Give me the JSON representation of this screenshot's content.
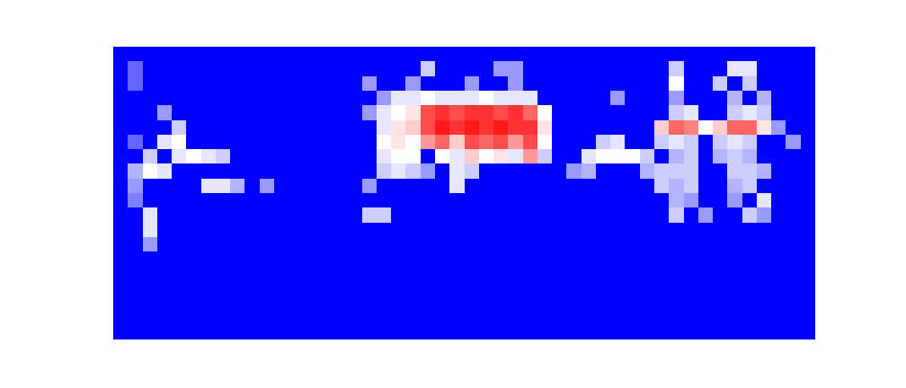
{
  "chart_data": {
    "type": "heatmap",
    "tick_labels": false,
    "grid": false,
    "colors": [
      "#0000ff",
      "#ffffff",
      "#ff0000"
    ],
    "xlim": [
      -0.5,
      47.5
    ],
    "ylim": [
      19.5,
      -0.5
    ],
    "zlim": [
      0,
      1
    ],
    "z": [
      [
        0,
        0,
        0,
        0,
        0,
        0,
        0,
        0,
        0,
        0,
        0,
        0,
        0,
        0,
        0,
        0,
        0,
        0,
        0,
        0,
        0,
        0,
        0,
        0,
        0,
        0,
        0,
        0,
        0,
        0,
        0,
        0,
        0,
        0,
        0,
        0,
        0,
        0,
        0,
        0,
        0,
        0,
        0,
        0,
        0,
        0,
        0,
        0
      ],
      [
        0,
        0.2,
        0,
        0,
        0,
        0,
        0,
        0,
        0,
        0,
        0,
        0,
        0,
        0,
        0,
        0,
        0,
        0,
        0,
        0,
        0,
        0.4,
        0,
        0,
        0,
        0,
        0.3,
        0.3,
        0,
        0,
        0,
        0,
        0,
        0,
        0,
        0,
        0,
        0,
        0.4,
        0,
        0,
        0,
        0.45,
        0.45,
        0,
        0,
        0,
        0
      ],
      [
        0,
        0.2,
        0,
        0,
        0,
        0,
        0,
        0,
        0,
        0,
        0,
        0,
        0,
        0,
        0,
        0,
        0,
        0.3,
        0,
        0,
        0.3,
        0,
        0,
        0,
        0.3,
        0,
        0,
        0.3,
        0,
        0,
        0,
        0,
        0,
        0,
        0,
        0,
        0,
        0,
        0.5,
        0,
        0,
        0.4,
        0,
        0.4,
        0,
        0,
        0,
        0
      ],
      [
        0,
        0,
        0,
        0,
        0,
        0,
        0,
        0,
        0,
        0,
        0,
        0,
        0,
        0,
        0,
        0,
        0,
        0,
        0.3,
        0.45,
        0.45,
        0.5,
        0.45,
        0.45,
        0.45,
        0.5,
        0.45,
        0.45,
        0.45,
        0,
        0,
        0,
        0,
        0,
        0.3,
        0,
        0,
        0,
        0.3,
        0,
        0,
        0,
        0.35,
        0,
        0.35,
        0,
        0,
        0
      ],
      [
        0,
        0,
        0,
        0.3,
        0,
        0,
        0,
        0,
        0,
        0,
        0,
        0,
        0,
        0,
        0,
        0,
        0,
        0.3,
        0.45,
        0.5,
        0.55,
        0.85,
        0.9,
        0.85,
        0.9,
        0.9,
        0.85,
        0.9,
        0.8,
        0.5,
        0,
        0,
        0,
        0,
        0,
        0,
        0,
        0,
        0.4,
        0.45,
        0,
        0,
        0.4,
        0.45,
        0.4,
        0,
        0,
        0
      ],
      [
        0,
        0,
        0,
        0,
        0.4,
        0,
        0,
        0,
        0,
        0,
        0,
        0,
        0,
        0,
        0,
        0,
        0,
        0,
        0.45,
        0.55,
        0.6,
        0.85,
        0.95,
        0.9,
        0.95,
        0.9,
        0.95,
        0.9,
        0.9,
        0.55,
        0,
        0,
        0,
        0,
        0,
        0,
        0,
        0.6,
        0.8,
        0.75,
        0.5,
        0.6,
        0.8,
        0.8,
        0.55,
        0.3,
        0,
        0
      ],
      [
        0,
        0.2,
        0,
        0.45,
        0.5,
        0,
        0,
        0,
        0,
        0,
        0,
        0,
        0,
        0,
        0,
        0,
        0,
        0,
        0.5,
        0.55,
        0.5,
        0.7,
        0.8,
        0.6,
        0.85,
        0.8,
        0.85,
        0.7,
        0.85,
        0.5,
        0,
        0,
        0,
        0.4,
        0.45,
        0,
        0,
        0.4,
        0.45,
        0.4,
        0,
        0.4,
        0.45,
        0.4,
        0,
        0,
        0.3,
        0
      ],
      [
        0,
        0,
        0.4,
        0,
        0.45,
        0.5,
        0.45,
        0.4,
        0,
        0,
        0,
        0,
        0,
        0,
        0,
        0,
        0,
        0,
        0.45,
        0.5,
        0.5,
        0,
        0.5,
        0.45,
        0.6,
        0.5,
        0.55,
        0.45,
        0.7,
        0.4,
        0,
        0,
        0.45,
        0.5,
        0.5,
        0.5,
        0.4,
        0,
        0.35,
        0.4,
        0,
        0.35,
        0.4,
        0.35,
        0,
        0,
        0,
        0
      ],
      [
        0,
        0.35,
        0.5,
        0.45,
        0,
        0,
        0,
        0,
        0,
        0,
        0,
        0,
        0,
        0,
        0,
        0,
        0,
        0,
        0.4,
        0.45,
        0.4,
        0.3,
        0,
        0.45,
        0.4,
        0,
        0,
        0,
        0,
        0,
        0,
        0.3,
        0.35,
        0,
        0,
        0,
        0.35,
        0.4,
        0.4,
        0.4,
        0,
        0,
        0.4,
        0.4,
        0.35,
        0,
        0,
        0
      ],
      [
        0,
        0.3,
        0,
        0,
        0,
        0,
        0.45,
        0.45,
        0.35,
        0,
        0.3,
        0,
        0,
        0,
        0,
        0,
        0,
        0.3,
        0,
        0,
        0,
        0,
        0,
        0.45,
        0,
        0,
        0,
        0,
        0,
        0,
        0,
        0,
        0,
        0,
        0,
        0,
        0,
        0.4,
        0.35,
        0.4,
        0,
        0,
        0.35,
        0.4,
        0,
        0,
        0,
        0
      ],
      [
        0,
        0.25,
        0,
        0,
        0,
        0,
        0,
        0,
        0,
        0,
        0,
        0,
        0,
        0,
        0,
        0,
        0,
        0,
        0,
        0,
        0,
        0,
        0,
        0,
        0,
        0,
        0,
        0,
        0,
        0,
        0,
        0,
        0,
        0,
        0,
        0,
        0,
        0,
        0.35,
        0.3,
        0,
        0,
        0.3,
        0,
        0.45,
        0,
        0,
        0
      ],
      [
        0,
        0,
        0.45,
        0,
        0,
        0,
        0,
        0,
        0,
        0,
        0,
        0,
        0,
        0,
        0,
        0,
        0,
        0.4,
        0.4,
        0,
        0,
        0,
        0,
        0,
        0,
        0,
        0,
        0,
        0,
        0,
        0,
        0,
        0,
        0,
        0,
        0,
        0,
        0,
        0.4,
        0,
        0.3,
        0,
        0,
        0.4,
        0.3,
        0,
        0,
        0
      ],
      [
        0,
        0,
        0.45,
        0,
        0,
        0,
        0,
        0,
        0,
        0,
        0,
        0,
        0,
        0,
        0,
        0,
        0,
        0,
        0,
        0,
        0,
        0,
        0,
        0,
        0,
        0,
        0,
        0,
        0,
        0,
        0,
        0,
        0,
        0,
        0,
        0,
        0,
        0,
        0,
        0,
        0,
        0,
        0,
        0,
        0,
        0,
        0,
        0
      ],
      [
        0,
        0,
        0.3,
        0,
        0,
        0,
        0,
        0,
        0,
        0,
        0,
        0,
        0,
        0,
        0,
        0,
        0,
        0,
        0,
        0,
        0,
        0,
        0,
        0,
        0,
        0,
        0,
        0,
        0,
        0,
        0,
        0,
        0,
        0,
        0,
        0,
        0,
        0,
        0,
        0,
        0,
        0,
        0,
        0,
        0,
        0,
        0,
        0
      ],
      [
        0,
        0,
        0,
        0,
        0,
        0,
        0,
        0,
        0,
        0,
        0,
        0,
        0,
        0,
        0,
        0,
        0,
        0,
        0,
        0,
        0,
        0,
        0,
        0,
        0,
        0,
        0,
        0,
        0,
        0,
        0,
        0,
        0,
        0,
        0,
        0,
        0,
        0,
        0,
        0,
        0,
        0,
        0,
        0,
        0,
        0,
        0,
        0
      ],
      [
        0,
        0,
        0,
        0,
        0,
        0,
        0,
        0,
        0,
        0,
        0,
        0,
        0,
        0,
        0,
        0,
        0,
        0,
        0,
        0,
        0,
        0,
        0,
        0,
        0,
        0,
        0,
        0,
        0,
        0,
        0,
        0,
        0,
        0,
        0,
        0,
        0,
        0,
        0,
        0,
        0,
        0,
        0,
        0,
        0,
        0,
        0,
        0
      ],
      [
        0,
        0,
        0,
        0,
        0,
        0,
        0,
        0,
        0,
        0,
        0,
        0,
        0,
        0,
        0,
        0,
        0,
        0,
        0,
        0,
        0,
        0,
        0,
        0,
        0,
        0,
        0,
        0,
        0,
        0,
        0,
        0,
        0,
        0,
        0,
        0,
        0,
        0,
        0,
        0,
        0,
        0,
        0,
        0,
        0,
        0,
        0,
        0
      ],
      [
        0,
        0,
        0,
        0,
        0,
        0,
        0,
        0,
        0,
        0,
        0,
        0,
        0,
        0,
        0,
        0,
        0,
        0,
        0,
        0,
        0,
        0,
        0,
        0,
        0,
        0,
        0,
        0,
        0,
        0,
        0,
        0,
        0,
        0,
        0,
        0,
        0,
        0,
        0,
        0,
        0,
        0,
        0,
        0,
        0,
        0,
        0,
        0
      ],
      [
        0,
        0,
        0,
        0,
        0,
        0,
        0,
        0,
        0,
        0,
        0,
        0,
        0,
        0,
        0,
        0,
        0,
        0,
        0,
        0,
        0,
        0,
        0,
        0,
        0,
        0,
        0,
        0,
        0,
        0,
        0,
        0,
        0,
        0,
        0,
        0,
        0,
        0,
        0,
        0,
        0,
        0,
        0,
        0,
        0,
        0,
        0,
        0
      ],
      [
        0,
        0,
        0,
        0,
        0,
        0,
        0,
        0,
        0,
        0,
        0,
        0,
        0,
        0,
        0,
        0,
        0,
        0,
        0,
        0,
        0,
        0,
        0,
        0,
        0,
        0,
        0,
        0,
        0,
        0,
        0,
        0,
        0,
        0,
        0,
        0,
        0,
        0,
        0,
        0,
        0,
        0,
        0,
        0,
        0,
        0,
        0,
        0
      ]
    ]
  }
}
